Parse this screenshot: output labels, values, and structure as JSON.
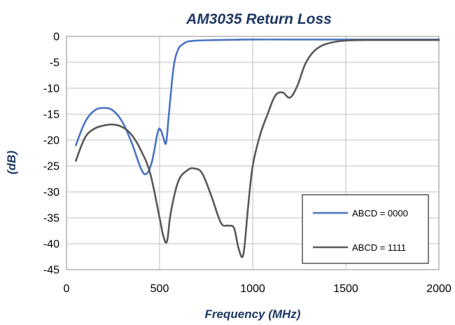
{
  "chart_data": {
    "type": "line",
    "title": "AM3035 Return Loss",
    "xlabel": "Frequency (MHz)",
    "ylabel": "(dB)",
    "xlim": [
      0,
      2000
    ],
    "ylim": [
      -45,
      0
    ],
    "x_ticks": [
      0,
      500,
      1000,
      1500,
      2000
    ],
    "x_tick_labels": [
      "0",
      "500",
      "1000",
      "1500",
      "2000"
    ],
    "y_ticks": [
      0,
      -5,
      -10,
      -15,
      -20,
      -25,
      -30,
      -35,
      -40,
      -45
    ],
    "y_tick_labels": [
      "0",
      "-5",
      "-10",
      "-15",
      "-20",
      "-25",
      "-30",
      "-35",
      "-40",
      "-45"
    ],
    "grid": true,
    "legend_position": "bottom-right",
    "series": [
      {
        "name": "ABCD = 0000",
        "color": "#4a74c0",
        "x": [
          50,
          100,
          150,
          200,
          250,
          300,
          350,
          400,
          430,
          460,
          490,
          505,
          520,
          535,
          550,
          575,
          600,
          625,
          650,
          700,
          800,
          1000,
          1200,
          1500,
          1800,
          2000
        ],
        "y": [
          -21,
          -16.5,
          -14.3,
          -13.8,
          -14.3,
          -16.5,
          -20.5,
          -25.5,
          -26.5,
          -24,
          -18.5,
          -18,
          -19.5,
          -20.5,
          -15,
          -6,
          -2.5,
          -1.5,
          -1,
          -0.8,
          -0.7,
          -0.6,
          -0.6,
          -0.6,
          -0.6,
          -0.6
        ]
      },
      {
        "name": "ABCD = 1111",
        "color": "#595959",
        "x": [
          50,
          100,
          150,
          200,
          250,
          300,
          350,
          400,
          450,
          500,
          520,
          540,
          560,
          600,
          650,
          690,
          730,
          780,
          830,
          870,
          900,
          925,
          950,
          975,
          1000,
          1040,
          1080,
          1120,
          1160,
          1200,
          1240,
          1280,
          1320,
          1360,
          1400,
          1450,
          1500,
          1600,
          1800,
          2000
        ],
        "y": [
          -24,
          -19.5,
          -17.8,
          -17.2,
          -17,
          -17.5,
          -19,
          -22,
          -26.5,
          -35,
          -38.5,
          -39.5,
          -34,
          -28,
          -25.8,
          -25.5,
          -26.5,
          -31,
          -36,
          -36.5,
          -37,
          -41,
          -42,
          -33,
          -25,
          -19,
          -15,
          -11.5,
          -10.8,
          -11.8,
          -9.5,
          -5.5,
          -3.2,
          -2,
          -1.4,
          -1,
          -0.8,
          -0.7,
          -0.7,
          -0.7
        ]
      }
    ]
  }
}
